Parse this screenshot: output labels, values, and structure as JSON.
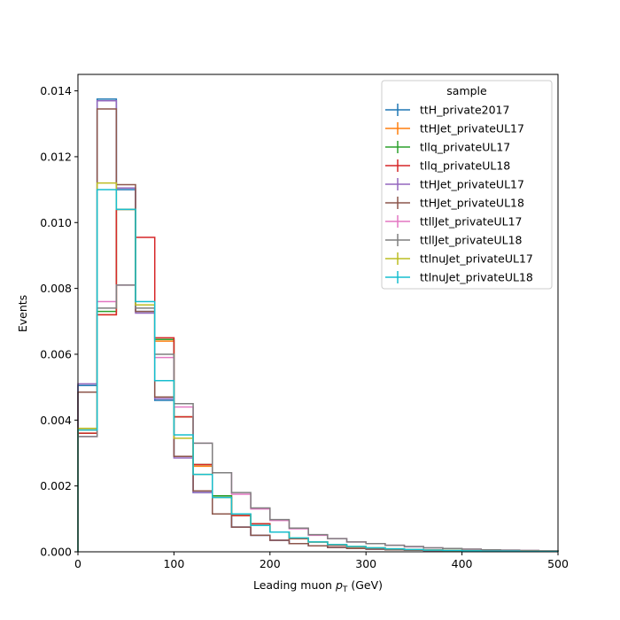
{
  "chart_data": {
    "type": "step",
    "title": "",
    "xlabel": "Leading muon $p_T$ (GeV)",
    "xlabel_main": "Leading muon ",
    "xlabel_symbol": "p",
    "xlabel_sub": "T",
    "xlabel_unit": " (GeV)",
    "ylabel": "Events",
    "xlim": [
      0,
      500
    ],
    "ylim": [
      0,
      0.0145
    ],
    "xticks": [
      0,
      100,
      200,
      300,
      400,
      500
    ],
    "xtick_labels": [
      "0",
      "100",
      "200",
      "300",
      "400",
      "500"
    ],
    "yticks": [
      0,
      0.002,
      0.004,
      0.006,
      0.008,
      0.01,
      0.012,
      0.014
    ],
    "ytick_labels": [
      "0.000",
      "0.002",
      "0.004",
      "0.006",
      "0.008",
      "0.010",
      "0.012",
      "0.014"
    ],
    "grid": false,
    "legend_title": "sample",
    "legend_position": "top-right",
    "bin_edges": [
      0,
      20,
      40,
      60,
      80,
      100,
      120,
      140,
      160,
      180,
      200,
      220,
      240,
      260,
      280,
      300,
      320,
      340,
      360,
      380,
      400,
      420,
      440,
      460,
      480,
      500
    ],
    "series": [
      {
        "name": "ttH_private2017",
        "color": "#1f77b4",
        "values": [
          0.00505,
          0.01375,
          0.011,
          0.0073,
          0.0046,
          0.0029,
          0.0018,
          0.00115,
          0.00075,
          0.0005,
          0.00035,
          0.00025,
          0.00018,
          0.00013,
          0.0001,
          8e-05,
          6e-05,
          5e-05,
          4e-05,
          3e-05,
          2e-05,
          2e-05,
          1e-05,
          1e-05,
          1e-05
        ]
      },
      {
        "name": "ttHJet_privateUL17",
        "color": "#ff7f0e",
        "values": [
          0.0037,
          0.0072,
          0.0104,
          0.0075,
          0.0064,
          0.0041,
          0.0026,
          0.0017,
          0.0011,
          0.0008,
          0.0006,
          0.0004,
          0.0003,
          0.0002,
          0.00015,
          0.00011,
          8e-05,
          6e-05,
          5e-05,
          4e-05,
          3e-05,
          2e-05,
          2e-05,
          1e-05,
          1e-05
        ]
      },
      {
        "name": "tllq_privateUL17",
        "color": "#2ca02c",
        "values": [
          0.0036,
          0.0073,
          0.0104,
          0.0075,
          0.00645,
          0.0041,
          0.00265,
          0.0017,
          0.0011,
          0.00085,
          0.0006,
          0.0004,
          0.0003,
          0.0002,
          0.00015,
          0.00011,
          8e-05,
          6e-05,
          5e-05,
          4e-05,
          3e-05,
          2e-05,
          2e-05,
          1e-05,
          1e-05
        ]
      },
      {
        "name": "tllq_privateUL18",
        "color": "#d62728",
        "values": [
          0.0036,
          0.0072,
          0.0104,
          0.00955,
          0.0065,
          0.0041,
          0.00265,
          0.00165,
          0.0011,
          0.00085,
          0.0006,
          0.0004,
          0.0003,
          0.0002,
          0.00015,
          0.00011,
          8e-05,
          6e-05,
          5e-05,
          4e-05,
          3e-05,
          2e-05,
          2e-05,
          1e-05,
          1e-05
        ]
      },
      {
        "name": "ttHJet_privateUL17",
        "color": "#9467bd",
        "values": [
          0.0051,
          0.0137,
          0.01105,
          0.00725,
          0.00465,
          0.00285,
          0.0018,
          0.00115,
          0.00075,
          0.0005,
          0.00035,
          0.00025,
          0.00018,
          0.00013,
          0.0001,
          8e-05,
          6e-05,
          5e-05,
          4e-05,
          3e-05,
          2e-05,
          2e-05,
          1e-05,
          1e-05,
          1e-05
        ]
      },
      {
        "name": "ttHJet_privateUL18",
        "color": "#8c564b",
        "values": [
          0.00485,
          0.01345,
          0.01115,
          0.0073,
          0.0047,
          0.0029,
          0.00185,
          0.00115,
          0.00075,
          0.0005,
          0.00035,
          0.00025,
          0.00018,
          0.00013,
          0.0001,
          8e-05,
          6e-05,
          5e-05,
          4e-05,
          3e-05,
          2e-05,
          2e-05,
          1e-05,
          1e-05,
          1e-05
        ]
      },
      {
        "name": "ttllJet_privateUL17",
        "color": "#e377c2",
        "values": [
          0.0035,
          0.0076,
          0.0081,
          0.0075,
          0.0059,
          0.0044,
          0.0033,
          0.0024,
          0.00175,
          0.0013,
          0.00095,
          0.0007,
          0.0005,
          0.0004,
          0.0003,
          0.00025,
          0.0002,
          0.00015,
          0.00012,
          0.0001,
          8e-05,
          6e-05,
          5e-05,
          4e-05,
          3e-05
        ]
      },
      {
        "name": "ttllJet_privateUL18",
        "color": "#7f7f7f",
        "values": [
          0.0035,
          0.0074,
          0.0081,
          0.0074,
          0.006,
          0.0045,
          0.0033,
          0.0024,
          0.0018,
          0.00133,
          0.00098,
          0.00072,
          0.00052,
          0.0004,
          0.0003,
          0.00025,
          0.0002,
          0.00016,
          0.00012,
          0.0001,
          8e-05,
          6e-05,
          5e-05,
          4e-05,
          3e-05
        ]
      },
      {
        "name": "ttlnuJet_privateUL17",
        "color": "#bcbd22",
        "values": [
          0.00375,
          0.0112,
          0.0104,
          0.0075,
          0.0052,
          0.00345,
          0.00235,
          0.00165,
          0.00115,
          0.0008,
          0.0006,
          0.00042,
          0.0003,
          0.00022,
          0.00016,
          0.00012,
          9e-05,
          7e-05,
          5e-05,
          4e-05,
          3e-05,
          2e-05,
          2e-05,
          1e-05,
          1e-05
        ]
      },
      {
        "name": "ttlnuJet_privateUL18",
        "color": "#17becf",
        "values": [
          0.0037,
          0.011,
          0.0104,
          0.0076,
          0.0052,
          0.00355,
          0.00235,
          0.00165,
          0.00115,
          0.0008,
          0.0006,
          0.00042,
          0.0003,
          0.00022,
          0.00016,
          0.00012,
          9e-05,
          7e-05,
          5e-05,
          4e-05,
          3e-05,
          2e-05,
          2e-05,
          1e-05,
          1e-05
        ]
      }
    ]
  }
}
